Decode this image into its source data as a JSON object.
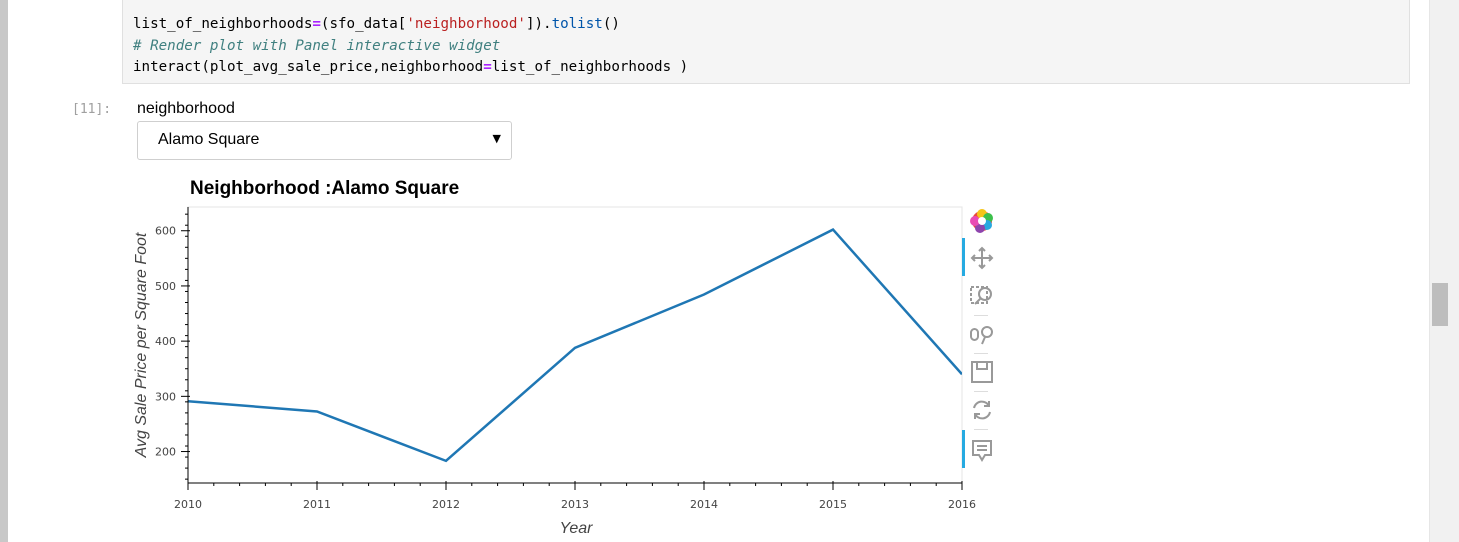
{
  "code": {
    "line1": {
      "a": "list_of_neighborhoods",
      "b": "=",
      "c": "(sfo_data[",
      "d": "'neighborhood'",
      "e": "]).",
      "f": "tolist",
      "g": "()"
    },
    "line2": "# Render plot with Panel interactive widget",
    "line3": {
      "a": "interact(plot_avg_sale_price,neighborhood",
      "b": "=",
      "c": "list_of_neighborhoods )"
    }
  },
  "output_prompt": "[11]:",
  "widget": {
    "label": "neighborhood",
    "selected": "Alamo Square"
  },
  "plot_title": "Neighborhood :Alamo Square",
  "toolbar": {
    "icons": [
      "bokeh-logo-icon",
      "pan-icon",
      "box-zoom-icon",
      "wheel-zoom-icon",
      "save-icon",
      "reset-icon",
      "hover-icon"
    ]
  },
  "colors": {
    "line": "#1f77b4",
    "toolbar_active": "#26aae1"
  },
  "chart_data": {
    "type": "line",
    "title": "Neighborhood :Alamo Square",
    "xlabel": "Year",
    "ylabel": "Avg Sale Price per Square Foot",
    "x": [
      2010,
      2011,
      2012,
      2013,
      2014,
      2015,
      2016
    ],
    "y": [
      291.2,
      272.5,
      183.1,
      387.8,
      484.4,
      602.1,
      340
    ],
    "xlim": [
      2010,
      2016
    ],
    "ylim": [
      143,
      643
    ],
    "xticks": [
      "2010",
      "2011",
      "2012",
      "2013",
      "2014",
      "2015",
      "2016"
    ],
    "yticks": [
      "200",
      "300",
      "400",
      "500",
      "600"
    ],
    "grid": false
  }
}
